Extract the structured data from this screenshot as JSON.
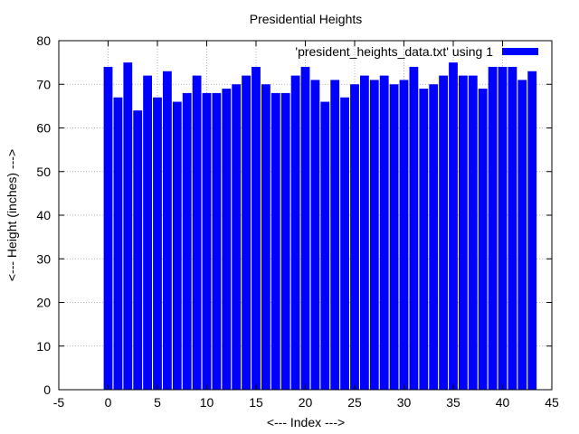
{
  "chart_data": {
    "type": "bar",
    "title": "Presidential Heights",
    "xlabel": "<--- Index --->",
    "ylabel": "<--- Height (inches) --->",
    "xlim": [
      -5,
      45
    ],
    "ylim": [
      0,
      80
    ],
    "xticks": [
      -5,
      0,
      5,
      10,
      15,
      20,
      25,
      30,
      35,
      40,
      45
    ],
    "yticks": [
      0,
      10,
      20,
      30,
      40,
      50,
      60,
      70,
      80
    ],
    "grid": true,
    "legend_position": "top-right",
    "series": [
      {
        "name": "'president_heights_data.txt' using 1",
        "color": "#0000ff",
        "x": [
          0,
          1,
          2,
          3,
          4,
          5,
          6,
          7,
          8,
          9,
          10,
          11,
          12,
          13,
          14,
          15,
          16,
          17,
          18,
          19,
          20,
          21,
          22,
          23,
          24,
          25,
          26,
          27,
          28,
          29,
          30,
          31,
          32,
          33,
          34,
          35,
          36,
          37,
          38,
          39,
          40,
          41,
          42,
          43
        ],
        "values": [
          74,
          67,
          75,
          64,
          72,
          67,
          73,
          66,
          68,
          72,
          68,
          68,
          69,
          70,
          72,
          74,
          70,
          68,
          68,
          72,
          74,
          71,
          66,
          71,
          67,
          70,
          72,
          71,
          72,
          70,
          71,
          74,
          69,
          70,
          72,
          75,
          72,
          72,
          69,
          74,
          74,
          74,
          71,
          73
        ]
      }
    ]
  }
}
